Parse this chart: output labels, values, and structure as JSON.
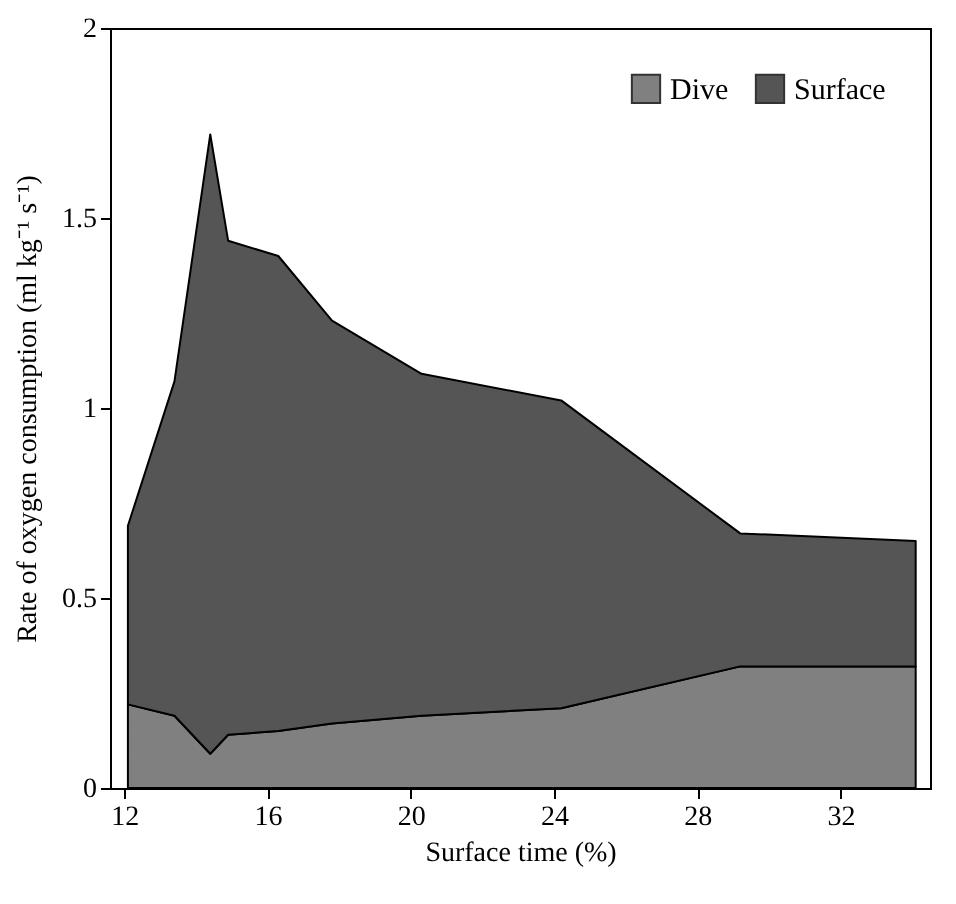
{
  "chart_data": {
    "type": "area",
    "stacked": true,
    "xlabel": "Surface time (%)",
    "ylabel": "Rate of oxygen consumption (ml kg⁻¹ s⁻¹)",
    "x": [
      12.1,
      13.4,
      14.4,
      14.9,
      16.3,
      17.8,
      20.3,
      24.2,
      29.2,
      34.1
    ],
    "series": [
      {
        "name": "Dive",
        "color": "#808080",
        "values": [
          0.22,
          0.19,
          0.09,
          0.14,
          0.15,
          0.17,
          0.19,
          0.21,
          0.32,
          0.32
        ]
      },
      {
        "name": "Surface",
        "color": "#555555",
        "values": [
          0.47,
          0.88,
          1.63,
          1.3,
          1.25,
          1.06,
          0.9,
          0.81,
          0.35,
          0.33
        ]
      }
    ],
    "xlim": [
      11.6,
      34.5
    ],
    "xticks": [
      12,
      16,
      20,
      24,
      28,
      32
    ],
    "ylim": [
      0,
      2
    ],
    "yticks": [
      0,
      0.5,
      1,
      1.5,
      2
    ],
    "legend": "top right",
    "grid": false
  }
}
